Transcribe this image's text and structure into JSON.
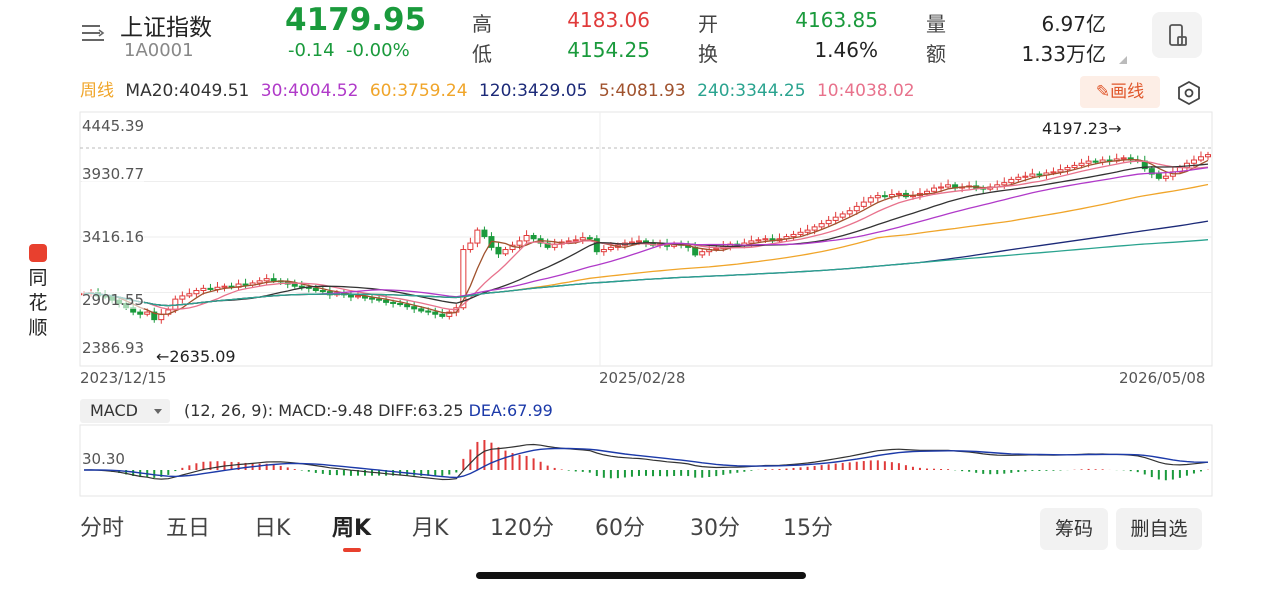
{
  "header": {
    "name": "上证指数",
    "code": "1A0001",
    "price": "4179.95",
    "change": "-0.14",
    "change_pct": "-0.00%",
    "quotes": [
      {
        "label": "高",
        "value": "4183.06",
        "color": "#e03a3a"
      },
      {
        "label": "低",
        "value": "4154.25",
        "color": "#1a9a3c"
      },
      {
        "label": "开",
        "value": "4163.85",
        "color": "#1a9a3c"
      },
      {
        "label": "换",
        "value": "1.46%",
        "color": "#222222"
      },
      {
        "label": "量",
        "value": "6.97亿",
        "color": "#222222"
      },
      {
        "label": "额",
        "value": "1.33万亿",
        "color": "#222222"
      }
    ]
  },
  "ma_bar": {
    "period": "周线",
    "items": [
      {
        "text": "MA20:4049.51",
        "color": "#333333"
      },
      {
        "text": "30:4004.52",
        "color": "#b03ac9"
      },
      {
        "text": "60:3759.24",
        "color": "#f0a52a"
      },
      {
        "text": "120:3429.05",
        "color": "#1c2a78"
      },
      {
        "text": "5:4081.93",
        "color": "#a0522d"
      },
      {
        "text": "240:3344.25",
        "color": "#2aa38f"
      },
      {
        "text": "10:4038.02",
        "color": "#e8728c"
      }
    ],
    "draw_button": "画线",
    "draw_icon": "pencil-icon",
    "settings_icon": "gear-hexagon-icon"
  },
  "brand": {
    "chars": [
      "同",
      "花",
      "顺"
    ]
  },
  "chart_data": {
    "type": "candlestick",
    "y_tick_labels": [
      "4445.39",
      "3930.77",
      "3416.16",
      "2901.55",
      "2386.93"
    ],
    "x_tick_labels": [
      "2023/12/15",
      "2025/02/28",
      "2026/05/08"
    ],
    "ylim": [
      2386.93,
      4445.39
    ],
    "annotations": {
      "high": "4197.23→",
      "low": "←2635.09"
    },
    "series": [
      {
        "name": "5",
        "color": "#a0522d"
      },
      {
        "name": "10",
        "color": "#e8728c"
      },
      {
        "name": "MA20",
        "color": "#333333"
      },
      {
        "name": "30",
        "color": "#b03ac9"
      },
      {
        "name": "60",
        "color": "#f0a52a"
      },
      {
        "name": "120",
        "color": "#1c2a78"
      },
      {
        "name": "240",
        "color": "#2aa38f"
      }
    ],
    "closes": [
      2890,
      2900,
      2870,
      2860,
      2830,
      2800,
      2760,
      2720,
      2700,
      2720,
      2650,
      2700,
      2740,
      2840,
      2870,
      2890,
      2920,
      2940,
      2930,
      2950,
      2960,
      2950,
      2980,
      2970,
      2990,
      3010,
      3030,
      3010,
      3000,
      2980,
      2960,
      2950,
      2940,
      2920,
      2910,
      2880,
      2900,
      2880,
      2860,
      2870,
      2850,
      2840,
      2830,
      2810,
      2800,
      2790,
      2770,
      2750,
      2730,
      2720,
      2700,
      2680,
      2720,
      2760,
      3300,
      3360,
      3480,
      3420,
      3320,
      3260,
      3300,
      3340,
      3380,
      3430,
      3400,
      3360,
      3320,
      3350,
      3370,
      3380,
      3390,
      3410,
      3400,
      3280,
      3300,
      3320,
      3340,
      3360,
      3370,
      3380,
      3360,
      3340,
      3350,
      3330,
      3350,
      3340,
      3320,
      3250,
      3280,
      3300,
      3310,
      3330,
      3350,
      3340,
      3360,
      3380,
      3390,
      3400,
      3380,
      3400,
      3420,
      3440,
      3460,
      3480,
      3510,
      3540,
      3570,
      3600,
      3630,
      3660,
      3700,
      3740,
      3780,
      3800,
      3790,
      3810,
      3820,
      3790,
      3800,
      3820,
      3840,
      3870,
      3880,
      3900,
      3870,
      3880,
      3890,
      3870,
      3860,
      3880,
      3900,
      3920,
      3950,
      3970,
      3980,
      4000,
      3990,
      4010,
      4020,
      4040,
      4060,
      4080,
      4100,
      4120,
      4110,
      4130,
      4120,
      4140,
      4150,
      4130,
      4120,
      4050,
      4000,
      3960,
      3980,
      4020,
      4060,
      4100,
      4130,
      4160,
      4179.95
    ],
    "macd": {
      "params": "(12, 26, 9):",
      "macd_label": "MACD:-9.48",
      "diff_label": "DIFF:63.25",
      "dea_label": "DEA:67.99",
      "y_tick_label": "30.30",
      "indicator": "MACD"
    }
  },
  "tabs": {
    "items": [
      "分时",
      "五日",
      "日K",
      "周K",
      "月K",
      "120分",
      "60分",
      "30分",
      "15分"
    ],
    "active_index": 3
  },
  "actions": {
    "chips": "筹码",
    "remove_watch": "删自选"
  }
}
